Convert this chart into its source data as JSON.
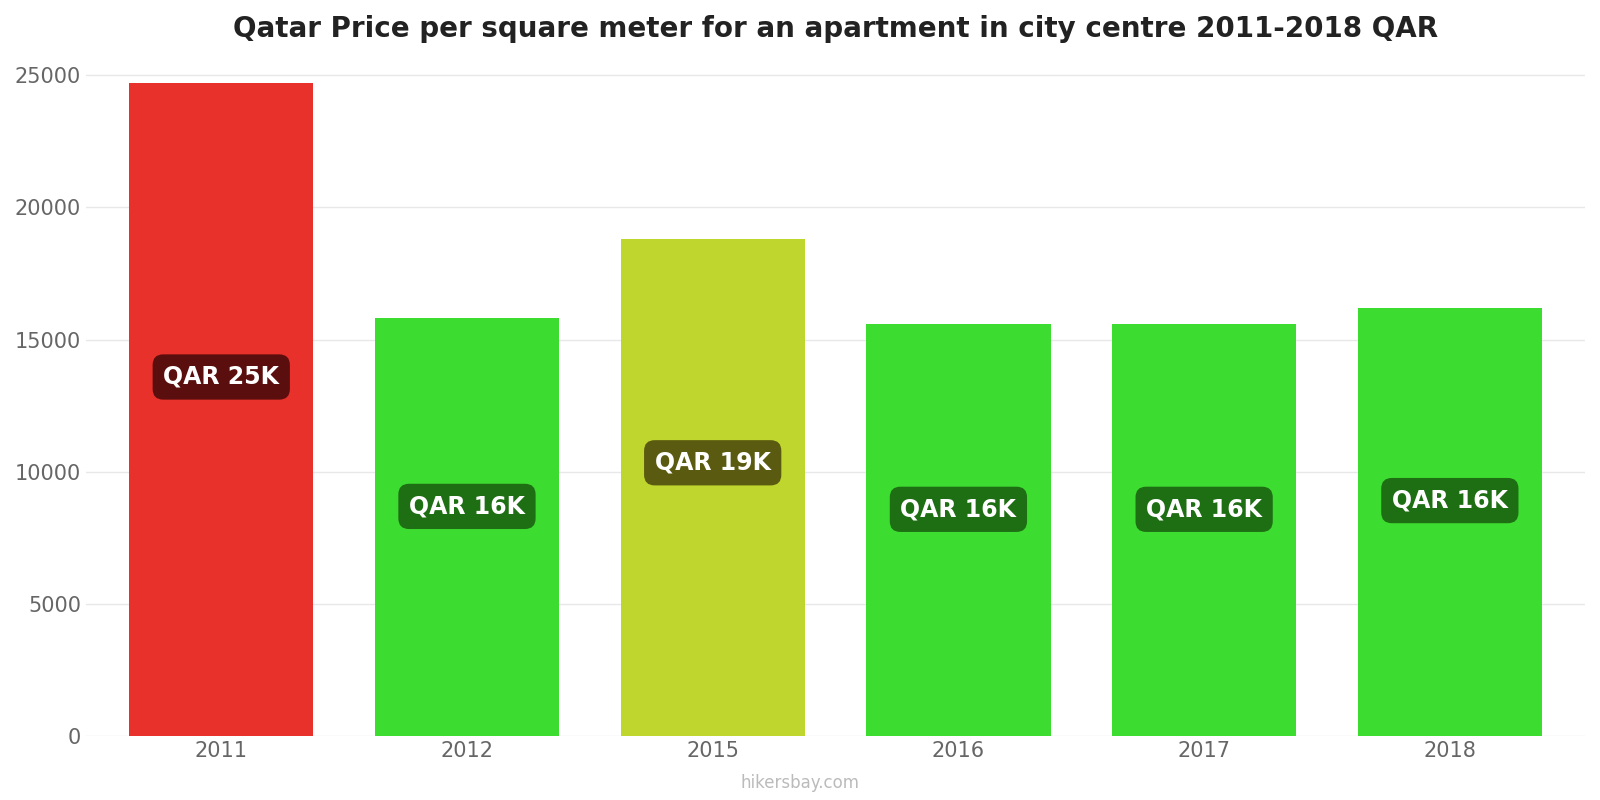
{
  "title": "Qatar Price per square meter for an apartment in city centre 2011-2018 QAR",
  "years": [
    2011,
    2012,
    2015,
    2016,
    2017,
    2018
  ],
  "values": [
    24700,
    15800,
    18800,
    15600,
    15600,
    16200
  ],
  "labels": [
    "QAR 25K",
    "QAR 16K",
    "QAR 19K",
    "QAR 16K",
    "QAR 16K",
    "QAR 16K"
  ],
  "bar_colors": [
    "#e8312a",
    "#3ddc30",
    "#bfd62e",
    "#3ddc30",
    "#3ddc30",
    "#3ddc30"
  ],
  "label_bg_colors": [
    "#5a0e0e",
    "#1e6e14",
    "#5a5a10",
    "#1e6e14",
    "#1e6e14",
    "#1e6e14"
  ],
  "ylim": [
    0,
    25500
  ],
  "yticks": [
    0,
    5000,
    10000,
    15000,
    20000,
    25000
  ],
  "background_color": "#ffffff",
  "grid_color": "#e8e8e8",
  "watermark": "hikersbay.com",
  "title_fontsize": 20,
  "label_fontsize": 17,
  "tick_fontsize": 15,
  "bar_width": 0.75
}
